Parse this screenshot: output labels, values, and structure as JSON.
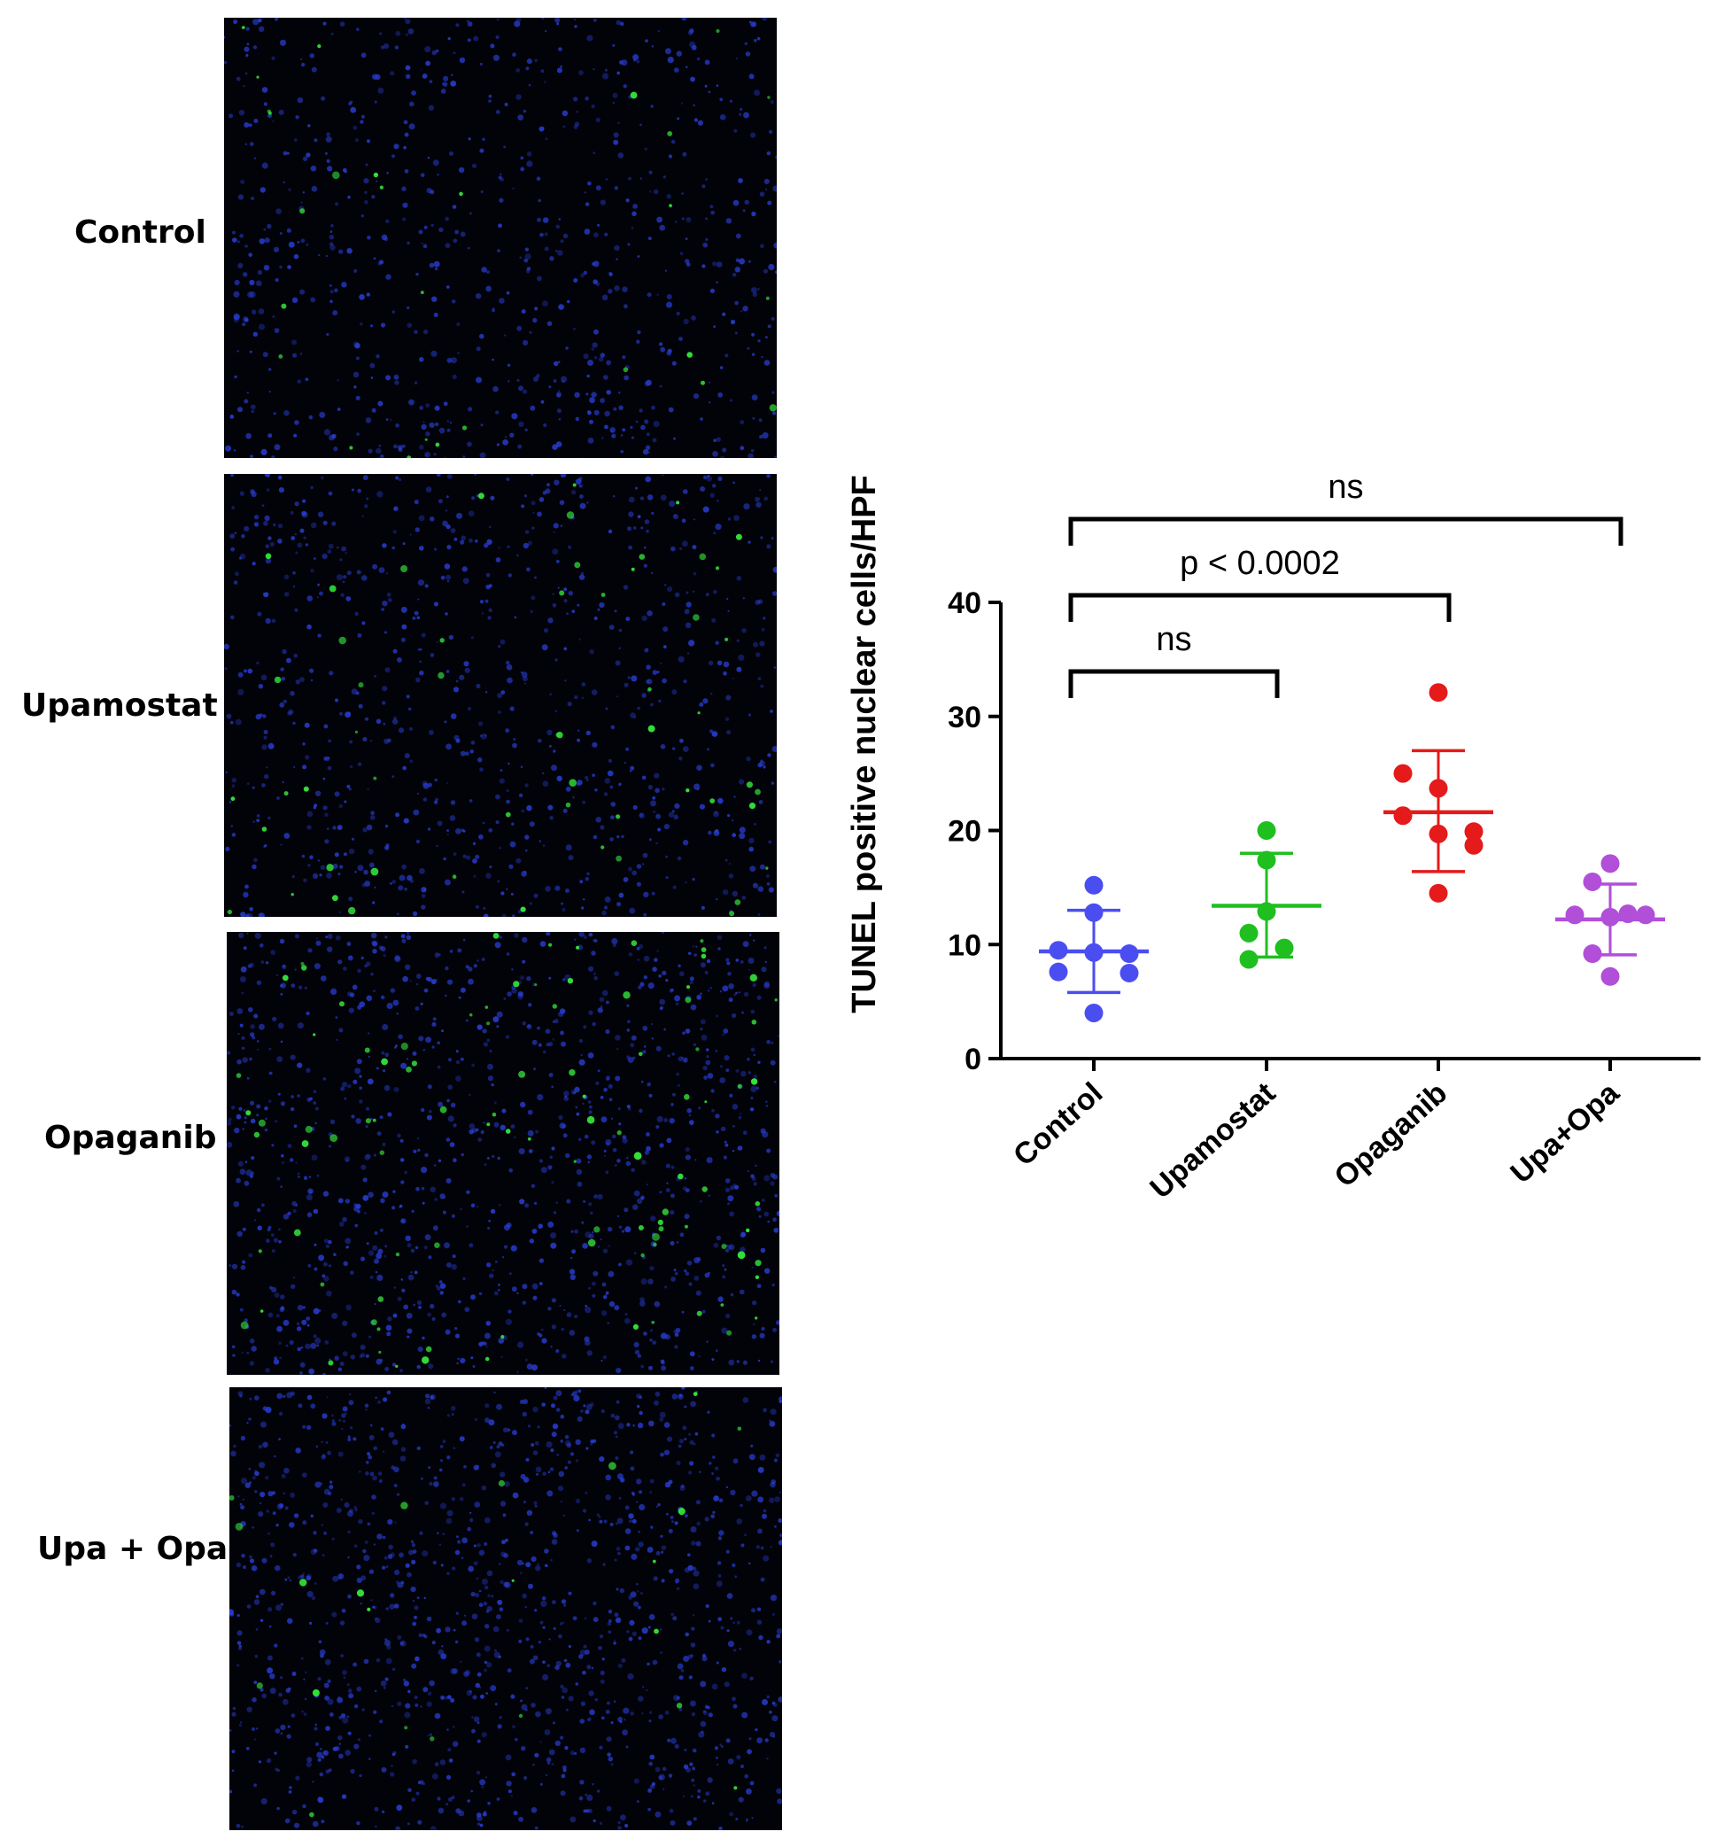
{
  "panels": [
    {
      "label": "Control",
      "green_density": 0.25,
      "blue_density": 0.55,
      "seed": 11
    },
    {
      "label": "Upamostat",
      "green_density": 0.5,
      "blue_density": 0.6,
      "seed": 23
    },
    {
      "label": "Opaganib",
      "green_density": 0.9,
      "blue_density": 0.8,
      "seed": 37
    },
    {
      "label": "Upa + Opa",
      "green_density": 0.2,
      "blue_density": 0.85,
      "seed": 53
    }
  ],
  "colors": {
    "nuclei": "#2a3fd8",
    "tunel": "#33e23a",
    "background": "#020309"
  },
  "chart_data": {
    "type": "scatter",
    "ylabel": "TUNEL positive nuclear cells/HPF",
    "xlabel": "",
    "ylim": [
      0,
      40
    ],
    "yticks": [
      "0",
      "10",
      "20",
      "30",
      "40"
    ],
    "categories": [
      "Control",
      "Upamostat",
      "Opaganib",
      "Upa+Opa"
    ],
    "series": [
      {
        "category": "Control",
        "color": "#4a4ef0",
        "points": [
          15.2,
          12.8,
          9.5,
          9.3,
          9.2,
          7.6,
          7.5,
          4.0
        ],
        "mean": 9.4,
        "sd_upper": 13.0,
        "sd_lower": 5.8
      },
      {
        "category": "Upamostat",
        "color": "#1fbf1f",
        "points": [
          20.0,
          17.4,
          12.9,
          11.0,
          9.7,
          8.7
        ],
        "mean": 13.4,
        "sd_upper": 18.0,
        "sd_lower": 8.9
      },
      {
        "category": "Opaganib",
        "color": "#e51a1a",
        "points": [
          32.1,
          25.0,
          23.7,
          21.3,
          19.9,
          19.7,
          18.7,
          14.5
        ],
        "mean": 21.6,
        "sd_upper": 27.0,
        "sd_lower": 16.4
      },
      {
        "category": "Upa+Opa",
        "color": "#b14fd8",
        "points": [
          17.1,
          15.5,
          12.7,
          12.6,
          12.6,
          12.4,
          9.2,
          7.2
        ],
        "mean": 12.2,
        "sd_upper": 15.3,
        "sd_lower": 9.1
      }
    ],
    "comparisons": [
      {
        "from": "Control",
        "to": "Upamostat",
        "label": "ns"
      },
      {
        "from": "Control",
        "to": "Opaganib",
        "label": "p < 0.0002"
      },
      {
        "from": "Control",
        "to": "Upa+Opa",
        "label": "ns"
      }
    ]
  }
}
